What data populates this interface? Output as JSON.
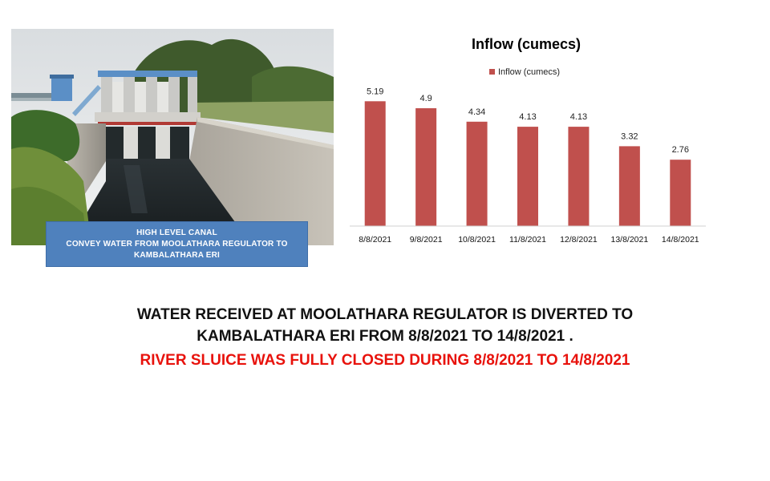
{
  "caption": {
    "line1": "HIGH  LEVEL CANAL",
    "line2": "CONVEY  WATER  FROM  MOOLATHARA  REGULATOR  TO",
    "line3": "KAMBALATHARA  ERI"
  },
  "message": {
    "line1": "WATER RECEIVED AT MOOLATHARA REGULATOR IS DIVERTED TO",
    "line2": "KAMBALATHARA ERI FROM 8/8/2021  TO 14/8/2021  .",
    "line3": "RIVER SLUICE WAS FULLY CLOSED DURING  8/8/2021  TO 14/8/2021"
  },
  "colors": {
    "bar": "#c0504d",
    "caption_bg": "#4f81bd",
    "highlight": "#e8120c"
  },
  "chart_data": {
    "type": "bar",
    "title": "Inflow (cumecs)",
    "categories": [
      "8/8/2021",
      "9/8/2021",
      "10/8/2021",
      "11/8/2021",
      "12/8/2021",
      "13/8/2021",
      "14/8/2021"
    ],
    "series": [
      {
        "name": "Inflow (cumecs)",
        "values": [
          5.19,
          4.9,
          4.34,
          4.13,
          4.13,
          3.32,
          2.76
        ]
      }
    ],
    "ylim": [
      0,
      6
    ],
    "grid": false,
    "legend": "top-center",
    "data_labels": true
  }
}
